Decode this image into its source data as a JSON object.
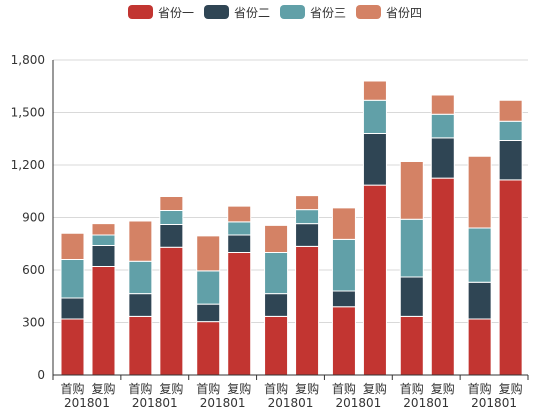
{
  "chart_data": {
    "type": "bar",
    "stacked": true,
    "title": "",
    "xlabel": "",
    "ylabel": "",
    "ylim": [
      0,
      1800
    ],
    "yticks": [
      "0",
      "300",
      "600",
      "900",
      "1,200",
      "1,500",
      "1,800"
    ],
    "grid": true,
    "legend_position": "top-center",
    "groups": [
      {
        "period": "201801",
        "categories": [
          "首购",
          "复购"
        ]
      },
      {
        "period": "201801",
        "categories": [
          "首购",
          "复购"
        ]
      },
      {
        "period": "201801",
        "categories": [
          "首购",
          "复购"
        ]
      },
      {
        "period": "201801",
        "categories": [
          "首购",
          "复购"
        ]
      },
      {
        "period": "201801",
        "categories": [
          "首购",
          "复购"
        ]
      },
      {
        "period": "201801",
        "categories": [
          "首购",
          "复购"
        ]
      },
      {
        "period": "201801",
        "categories": [
          "首购",
          "复购"
        ]
      }
    ],
    "series": [
      {
        "name": "省份一",
        "color": "#c23531",
        "values": [
          320,
          620,
          335,
          730,
          305,
          700,
          335,
          735,
          390,
          1085,
          335,
          1125,
          320,
          1115
        ]
      },
      {
        "name": "省份二",
        "color": "#2f4554",
        "values": [
          120,
          120,
          130,
          130,
          100,
          100,
          130,
          130,
          90,
          295,
          225,
          230,
          210,
          225
        ]
      },
      {
        "name": "省份三",
        "color": "#61a0a8",
        "values": [
          220,
          60,
          185,
          80,
          190,
          75,
          235,
          80,
          295,
          190,
          330,
          135,
          310,
          110
        ]
      },
      {
        "name": "省份四",
        "color": "#d48265",
        "values": [
          150,
          65,
          230,
          80,
          200,
          90,
          155,
          80,
          180,
          110,
          330,
          110,
          410,
          120
        ]
      }
    ]
  }
}
